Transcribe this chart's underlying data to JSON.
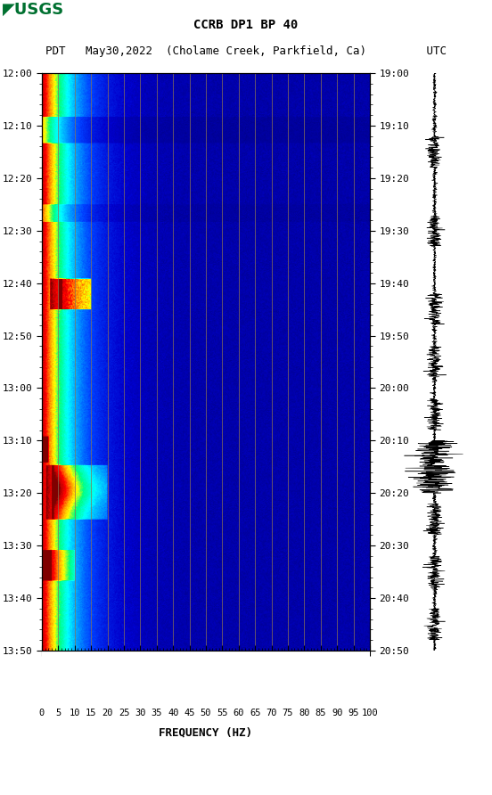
{
  "title_line1": "CCRB DP1 BP 40",
  "title_line2_pdt": "PDT   May30,2022  (Cholame Creek, Parkfield, Ca)         UTC",
  "xlabel": "FREQUENCY (HZ)",
  "freq_ticks": [
    0,
    5,
    10,
    15,
    20,
    25,
    30,
    35,
    40,
    45,
    50,
    55,
    60,
    65,
    70,
    75,
    80,
    85,
    90,
    95,
    100
  ],
  "time_left_labels": [
    "12:00",
    "12:10",
    "12:20",
    "12:30",
    "12:40",
    "12:50",
    "13:00",
    "13:10",
    "13:20",
    "13:30",
    "13:40",
    "13:50"
  ],
  "time_right_labels": [
    "19:00",
    "19:10",
    "19:20",
    "19:30",
    "19:40",
    "19:50",
    "20:00",
    "20:10",
    "20:20",
    "20:30",
    "20:40",
    "20:50"
  ],
  "n_time": 660,
  "n_freq": 400,
  "freq_min": 0,
  "freq_max": 100,
  "background_color": "#ffffff",
  "grid_color": "#8B7355",
  "usgs_green": "#007030",
  "waveform_color": "#000000",
  "grid_freqs": [
    5,
    10,
    15,
    20,
    25,
    30,
    35,
    40,
    45,
    50,
    55,
    60,
    65,
    70,
    75,
    80,
    85,
    90,
    95
  ]
}
